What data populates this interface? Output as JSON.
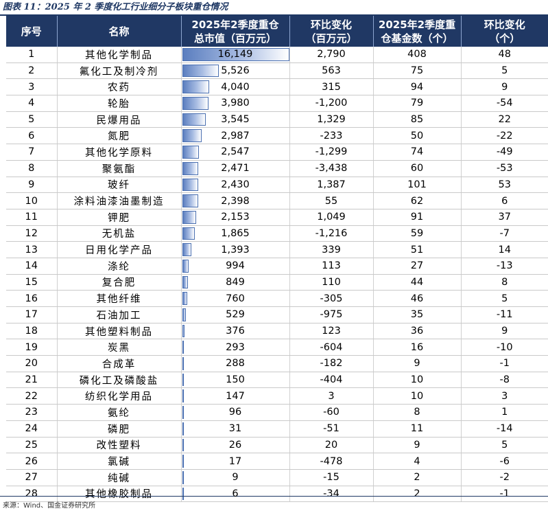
{
  "caption": "图表 11：2025 年 2 季度化工行业细分子板块重仓情况",
  "headers": {
    "index": "序号",
    "name": "名称",
    "value_line1": "2025年2季度重仓",
    "value_line2": "总市值（百万元）",
    "value_change_line1": "环比变化",
    "value_change_line2": "（百万元）",
    "funds_line1": "2025年2季度重",
    "funds_line2": "仓基金数（个）",
    "funds_change_line1": "环比变化",
    "funds_change_line2": "（个）"
  },
  "rows": [
    {
      "no": "1",
      "name": "其他化学制品",
      "value": "16,149",
      "value_num": 16149,
      "value_change": "2,790",
      "funds": "408",
      "funds_change": "48"
    },
    {
      "no": "2",
      "name": "氟化工及制冷剂",
      "value": "5,526",
      "value_num": 5526,
      "value_change": "563",
      "funds": "75",
      "funds_change": "5"
    },
    {
      "no": "3",
      "name": "农药",
      "value": "4,040",
      "value_num": 4040,
      "value_change": "315",
      "funds": "94",
      "funds_change": "9"
    },
    {
      "no": "4",
      "name": "轮胎",
      "value": "3,980",
      "value_num": 3980,
      "value_change": "-1,200",
      "funds": "79",
      "funds_change": "-54"
    },
    {
      "no": "5",
      "name": "民爆用品",
      "value": "3,545",
      "value_num": 3545,
      "value_change": "1,329",
      "funds": "85",
      "funds_change": "22"
    },
    {
      "no": "6",
      "name": "氮肥",
      "value": "2,987",
      "value_num": 2987,
      "value_change": "-233",
      "funds": "50",
      "funds_change": "-22"
    },
    {
      "no": "7",
      "name": "其他化学原料",
      "value": "2,547",
      "value_num": 2547,
      "value_change": "-1,299",
      "funds": "74",
      "funds_change": "-49"
    },
    {
      "no": "8",
      "name": "聚氨酯",
      "value": "2,471",
      "value_num": 2471,
      "value_change": "-3,438",
      "funds": "60",
      "funds_change": "-53"
    },
    {
      "no": "9",
      "name": "玻纤",
      "value": "2,430",
      "value_num": 2430,
      "value_change": "1,387",
      "funds": "101",
      "funds_change": "53"
    },
    {
      "no": "10",
      "name": "涂料油漆油墨制造",
      "value": "2,398",
      "value_num": 2398,
      "value_change": "55",
      "funds": "62",
      "funds_change": "6"
    },
    {
      "no": "11",
      "name": "钾肥",
      "value": "2,153",
      "value_num": 2153,
      "value_change": "1,049",
      "funds": "91",
      "funds_change": "37"
    },
    {
      "no": "12",
      "name": "无机盐",
      "value": "1,865",
      "value_num": 1865,
      "value_change": "-1,216",
      "funds": "59",
      "funds_change": "-7"
    },
    {
      "no": "13",
      "name": "日用化学产品",
      "value": "1,393",
      "value_num": 1393,
      "value_change": "339",
      "funds": "51",
      "funds_change": "14"
    },
    {
      "no": "14",
      "name": "涤纶",
      "value": "994",
      "value_num": 994,
      "value_change": "113",
      "funds": "27",
      "funds_change": "-13"
    },
    {
      "no": "15",
      "name": "复合肥",
      "value": "849",
      "value_num": 849,
      "value_change": "110",
      "funds": "44",
      "funds_change": "8"
    },
    {
      "no": "16",
      "name": "其他纤维",
      "value": "760",
      "value_num": 760,
      "value_change": "-305",
      "funds": "46",
      "funds_change": "5"
    },
    {
      "no": "17",
      "name": "石油加工",
      "value": "529",
      "value_num": 529,
      "value_change": "-975",
      "funds": "35",
      "funds_change": "-11"
    },
    {
      "no": "18",
      "name": "其他塑料制品",
      "value": "376",
      "value_num": 376,
      "value_change": "123",
      "funds": "36",
      "funds_change": "9"
    },
    {
      "no": "19",
      "name": "炭黑",
      "value": "293",
      "value_num": 293,
      "value_change": "-604",
      "funds": "16",
      "funds_change": "-10"
    },
    {
      "no": "20",
      "name": "合成革",
      "value": "288",
      "value_num": 288,
      "value_change": "-182",
      "funds": "9",
      "funds_change": "-1"
    },
    {
      "no": "21",
      "name": "磷化工及磷酸盐",
      "value": "150",
      "value_num": 150,
      "value_change": "-404",
      "funds": "10",
      "funds_change": "-8"
    },
    {
      "no": "22",
      "name": "纺织化学用品",
      "value": "147",
      "value_num": 147,
      "value_change": "3",
      "funds": "10",
      "funds_change": "3"
    },
    {
      "no": "23",
      "name": "氨纶",
      "value": "96",
      "value_num": 96,
      "value_change": "-60",
      "funds": "8",
      "funds_change": "1"
    },
    {
      "no": "24",
      "name": "磷肥",
      "value": "31",
      "value_num": 31,
      "value_change": "-51",
      "funds": "11",
      "funds_change": "-14"
    },
    {
      "no": "25",
      "name": "改性塑料",
      "value": "26",
      "value_num": 26,
      "value_change": "20",
      "funds": "9",
      "funds_change": "5"
    },
    {
      "no": "26",
      "name": "氯碱",
      "value": "17",
      "value_num": 17,
      "value_change": "-478",
      "funds": "4",
      "funds_change": "-6"
    },
    {
      "no": "27",
      "name": "纯碱",
      "value": "9",
      "value_num": 9,
      "value_change": "-15",
      "funds": "2",
      "funds_change": "-2"
    },
    {
      "no": "28",
      "name": "其他橡胶制品",
      "value": "6",
      "value_num": 6,
      "value_change": "-34",
      "funds": "2",
      "funds_change": "-1"
    }
  ],
  "source": "来源：Wind、国金证券研究所",
  "colors": {
    "header_bg": "#203864",
    "bar": "#5b7ebf"
  }
}
